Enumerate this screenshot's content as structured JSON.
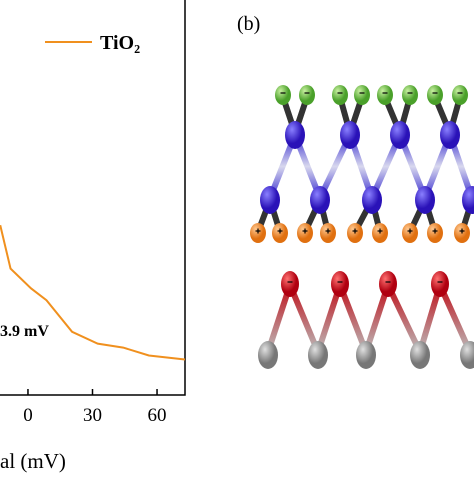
{
  "chart_data": {
    "type": "line",
    "x_label": "al (mV)",
    "annotation": "3.9 mV",
    "x": [
      -12.9,
      -8.1,
      1.4,
      8.6,
      20.5,
      32.4,
      44.3,
      56.2,
      73
    ],
    "series": [
      {
        "name": "TiO₂",
        "color": "#f0901e",
        "values": [
          0.43,
          0.32,
          0.27,
          0.24,
          0.16,
          0.13,
          0.12,
          0.1,
          0.09
        ]
      }
    ],
    "xlim": [
      -13,
      73
    ],
    "xticks": [
      0,
      30,
      60
    ],
    "ylim": [
      0,
      1
    ]
  },
  "diagram": {
    "label": "(b)"
  }
}
